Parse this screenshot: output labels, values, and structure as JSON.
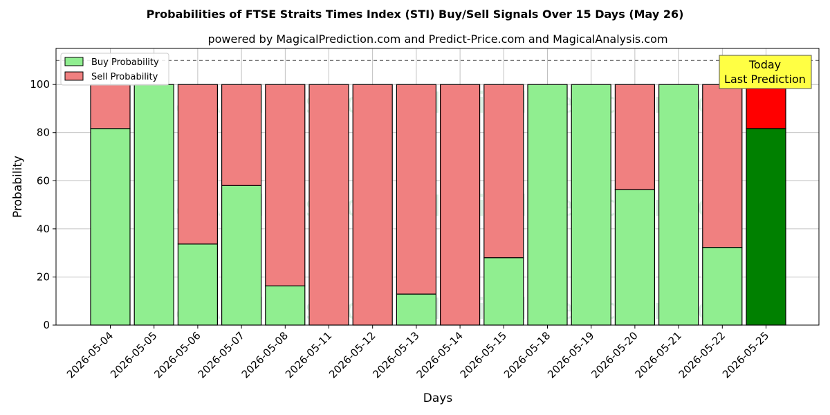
{
  "chart_data": {
    "type": "bar",
    "stacked": true,
    "title": "Probabilities of FTSE Straits Times Index (STI) Buy/Sell Signals Over 15 Days (May 26)",
    "subtitle": "powered by MagicalPrediction.com and Predict-Price.com and MagicalAnalysis.com",
    "xlabel": "Days",
    "ylabel": "Probability",
    "ylim": [
      0,
      115
    ],
    "yticks": [
      0,
      20,
      40,
      60,
      80,
      100
    ],
    "reference_line": 110,
    "grid": true,
    "legend_position": "top-left",
    "categories": [
      "2026-05-04",
      "2026-05-05",
      "2026-05-06",
      "2026-05-07",
      "2026-05-08",
      "2026-05-11",
      "2026-05-12",
      "2026-05-13",
      "2026-05-14",
      "2026-05-15",
      "2026-05-18",
      "2026-05-19",
      "2026-05-20",
      "2026-05-21",
      "2026-05-22",
      "2026-05-25"
    ],
    "series": [
      {
        "name": "Buy Probability",
        "color": "#90ee90",
        "highlight_color": "#008000",
        "values": [
          81.7,
          100,
          33.7,
          58,
          16.3,
          0,
          0,
          12.9,
          0,
          28,
          100,
          100,
          56.3,
          100,
          32.3,
          81.7
        ]
      },
      {
        "name": "Sell Probability",
        "color": "#f08080",
        "highlight_color": "#ff0000",
        "values": [
          18.3,
          0,
          66.3,
          42,
          83.7,
          100,
          100,
          87.1,
          100,
          72,
          0,
          0,
          43.7,
          0,
          67.7,
          18.3
        ]
      }
    ],
    "highlight_index": 15,
    "annotation": {
      "line1": "Today",
      "line2": "Last Prediction",
      "color": "#ffff44"
    },
    "watermarks": [
      "MagicalAnalysis.com",
      "MagicalPrediction.com"
    ]
  }
}
